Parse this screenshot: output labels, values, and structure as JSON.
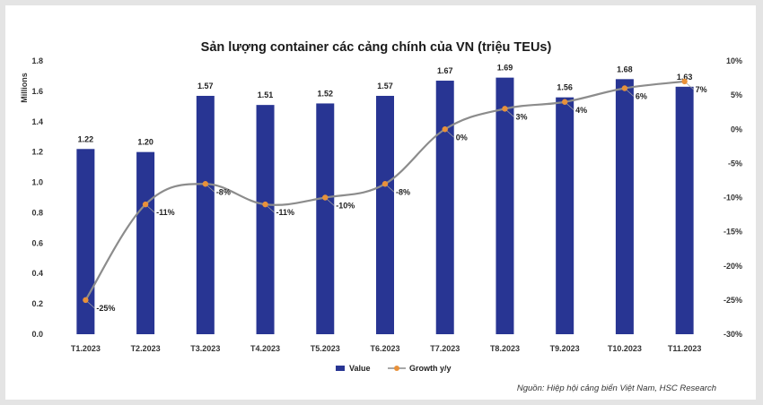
{
  "chart_data": {
    "type": "bar",
    "title": "Sản lượng container các cảng chính của VN (triệu TEUs)",
    "ylabel": "Millions",
    "categories": [
      "T1.2023",
      "T2.2023",
      "T3.2023",
      "T4.2023",
      "T5.2023",
      "T6.2023",
      "T7.2023",
      "T8.2023",
      "T9.2023",
      "T10.2023",
      "T11.2023"
    ],
    "series": [
      {
        "name": "Value",
        "type": "bar",
        "axis": "left",
        "color": "#283593",
        "values": [
          1.22,
          1.2,
          1.57,
          1.51,
          1.52,
          1.57,
          1.67,
          1.69,
          1.56,
          1.68,
          1.63
        ],
        "labels": [
          "1.22",
          "1.20",
          "1.57",
          "1.51",
          "1.52",
          "1.57",
          "1.67",
          "1.69",
          "1.56",
          "1.68",
          "1.63"
        ]
      },
      {
        "name": "Growth y/y",
        "type": "line",
        "axis": "right",
        "color": "#e8913a",
        "line_color": "#8c8c8c",
        "values": [
          -25,
          -11,
          -8,
          -11,
          -10,
          -8,
          0,
          3,
          4,
          6,
          7
        ],
        "labels": [
          "-25%",
          "-11%",
          "-8%",
          "-11%",
          "-10%",
          "-8%",
          "0%",
          "3%",
          "4%",
          "6%",
          "7%"
        ]
      }
    ],
    "ylim": [
      0,
      1.8
    ],
    "y2lim": [
      -30,
      10
    ],
    "yticks": [
      "0.0",
      "0.2",
      "0.4",
      "0.6",
      "0.8",
      "1.0",
      "1.2",
      "1.4",
      "1.6",
      "1.8"
    ],
    "y2ticks": [
      "-30%",
      "-25%",
      "-20%",
      "-15%",
      "-10%",
      "-5%",
      "0%",
      "5%",
      "10%"
    ],
    "legend_position": "bottom",
    "grid": false,
    "source": "Nguồn: Hiệp hội cảng biển Việt Nam, HSC Research"
  }
}
